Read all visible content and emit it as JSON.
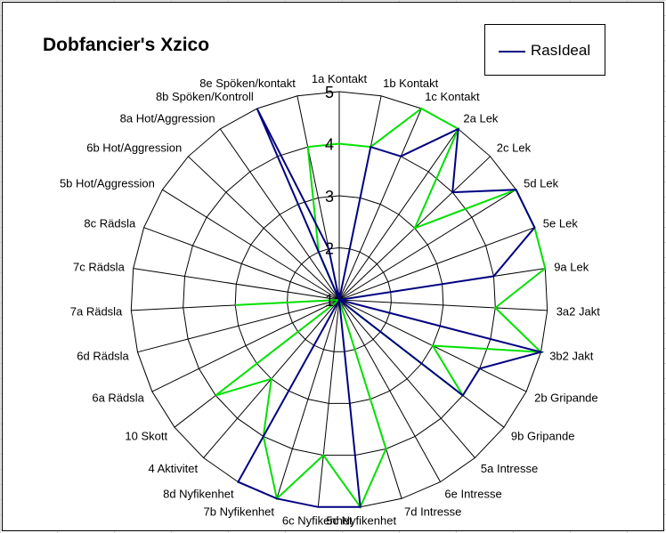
{
  "chart_data": {
    "type": "radar",
    "title": "Dobfancier's Xzico",
    "rlim": [
      1,
      5
    ],
    "r_ticks": [
      "1",
      "2",
      "3",
      "4",
      "5"
    ],
    "categories": [
      "1a Kontakt",
      "1b Kontakt",
      "1c Kontakt",
      "2a Lek",
      "2c Lek",
      "5d Lek",
      "5e Lek",
      "9a Lek",
      "3a2 Jakt",
      "3b2 Jakt",
      "2b Gripande",
      "9b Gripande",
      "5a Intresse",
      "6e Intresse",
      "7d Intresse",
      "5c Nyfikenhet",
      "6c Nyfikenhet",
      "7b Nyfikenhet",
      "8d Nyfikenhet",
      "4 Aktivitet",
      "10 Skott",
      "6a Rädsla",
      "6d Rädsla",
      "7a Rädsla",
      "7c Rädsla",
      "8c Rädsla",
      "5b Hot/Aggression",
      "6b Hot/Aggression",
      "8a Hot/Aggression",
      "8b Spöken/Kontroll",
      "8e Spöken/kontakt"
    ],
    "series": [
      {
        "name": "RasIdeal",
        "color": "#000080",
        "values": [
          1,
          4,
          4,
          5,
          4,
          5,
          5,
          4,
          1,
          5,
          4,
          4,
          1,
          1,
          1,
          5,
          5,
          5,
          5,
          1,
          1,
          1,
          1,
          1,
          1,
          1,
          1,
          1,
          1,
          5,
          2
        ]
      },
      {
        "name": "",
        "color": "#00e000",
        "values": [
          4,
          4,
          5,
          5,
          3,
          5,
          5,
          5,
          4,
          5,
          3,
          4,
          1,
          1,
          4,
          5,
          4,
          5,
          4,
          3,
          4,
          1,
          1,
          3,
          1,
          1,
          1,
          1,
          1,
          2,
          4
        ]
      }
    ],
    "legend": {
      "position": "top-right",
      "entries": [
        "RasIdeal"
      ]
    },
    "grid": true,
    "colors": {
      "grid": "#000000",
      "background": "#ffffff",
      "sheet_grid": "#d4d4d4"
    }
  }
}
